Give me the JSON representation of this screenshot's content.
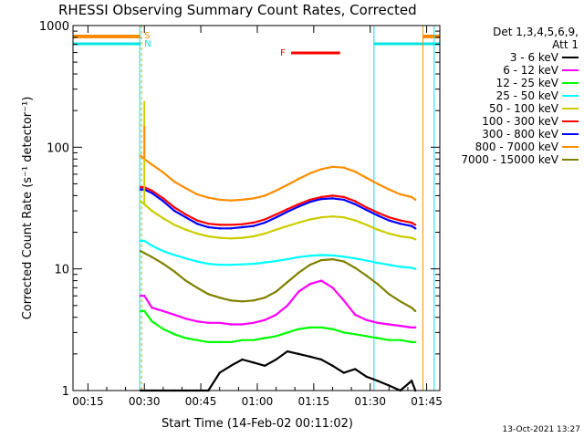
{
  "chart_data": {
    "type": "line",
    "title": "RHESSI Observing Summary Count Rates, Corrected",
    "xlabel": "Start Time (14-Feb-02 00:11:02)",
    "ylabel": "Corrected Count Rate (s⁻¹ detector⁻¹)",
    "yscale": "log",
    "ylim": [
      1,
      1000
    ],
    "xlim": [
      "00:11:02",
      "01:48:30"
    ],
    "x_ticks": [
      "00:15",
      "00:30",
      "00:45",
      "01:00",
      "01:15",
      "01:30",
      "01:45"
    ],
    "y_ticks": [
      "1",
      "10",
      "100",
      "1000"
    ],
    "legend_header": [
      "Det 1,3,4,5,6,9,",
      "Att 1"
    ],
    "legend_position": "right",
    "flags": {
      "S_label": "S",
      "N_label": "N",
      "F_label": "F",
      "F_span": [
        "01:09",
        "01:22"
      ],
      "saa_color": "#ff8c00",
      "night_color": "#00e5e5",
      "flare_color": "#ff0000",
      "orbit_marks": [
        "00:29",
        "01:31",
        "01:44",
        "01:47"
      ]
    },
    "x_times": [
      "00:29",
      "00:30",
      "00:32",
      "00:35",
      "00:38",
      "00:41",
      "00:44",
      "00:47",
      "00:50",
      "00:53",
      "00:56",
      "00:59",
      "01:02",
      "01:05",
      "01:08",
      "01:11",
      "01:14",
      "01:17",
      "01:20",
      "01:23",
      "01:26",
      "01:29",
      "01:32",
      "01:35",
      "01:38",
      "01:41",
      "01:42"
    ],
    "series": [
      {
        "name": "3 - 6 keV",
        "color": "#000000",
        "values": [
          1.0,
          1.0,
          1.0,
          1.0,
          1.0,
          1.0,
          1.0,
          1.0,
          1.4,
          1.6,
          1.8,
          1.7,
          1.6,
          1.8,
          2.1,
          2.0,
          1.9,
          1.8,
          1.6,
          1.4,
          1.5,
          1.3,
          1.2,
          1.1,
          1.0,
          1.2,
          1.0
        ]
      },
      {
        "name": "6 - 12 keV",
        "color": "#ff00ff",
        "values": [
          6.0,
          6.0,
          4.8,
          4.5,
          4.2,
          3.9,
          3.7,
          3.6,
          3.6,
          3.5,
          3.5,
          3.6,
          3.8,
          4.2,
          5.0,
          6.5,
          7.5,
          8.0,
          7.0,
          5.5,
          4.2,
          3.8,
          3.6,
          3.5,
          3.4,
          3.3,
          3.3
        ]
      },
      {
        "name": "12 - 25 keV",
        "color": "#00ff00",
        "values": [
          4.5,
          4.5,
          3.7,
          3.2,
          2.9,
          2.7,
          2.6,
          2.5,
          2.5,
          2.5,
          2.6,
          2.6,
          2.7,
          2.8,
          3.0,
          3.2,
          3.3,
          3.3,
          3.2,
          3.0,
          2.9,
          2.8,
          2.7,
          2.6,
          2.6,
          2.5,
          2.5
        ]
      },
      {
        "name": "25 - 50 keV",
        "color": "#00ffff",
        "values": [
          17.0,
          17.0,
          15.5,
          14.0,
          13.0,
          12.2,
          11.5,
          11.0,
          10.8,
          10.8,
          10.9,
          11.0,
          11.3,
          11.6,
          12.0,
          12.5,
          12.8,
          13.0,
          12.9,
          12.6,
          12.2,
          11.7,
          11.2,
          10.8,
          10.4,
          10.2,
          10.0
        ]
      },
      {
        "name": "50 - 100 keV",
        "color": "#cccc00",
        "values": [
          36.0,
          34.0,
          30.0,
          26.0,
          23.0,
          21.0,
          19.5,
          18.5,
          18.0,
          17.8,
          18.0,
          18.5,
          19.5,
          21.0,
          22.5,
          24.0,
          25.5,
          26.5,
          27.0,
          26.5,
          25.0,
          23.0,
          21.0,
          19.5,
          18.5,
          18.0,
          17.5
        ]
      },
      {
        "name": "100 - 300 keV",
        "color": "#ff0000",
        "values": [
          47.0,
          47.0,
          44.0,
          38.0,
          32.0,
          28.0,
          25.0,
          23.5,
          23.0,
          23.0,
          23.3,
          24.0,
          25.5,
          28.0,
          31.0,
          34.0,
          37.0,
          39.0,
          40.0,
          39.0,
          36.0,
          32.0,
          29.0,
          26.5,
          25.0,
          24.0,
          23.0
        ]
      },
      {
        "name": "300 - 800 keV",
        "color": "#0000ff",
        "values": [
          45.0,
          45.0,
          42.0,
          36.0,
          30.0,
          26.5,
          23.5,
          22.0,
          21.5,
          21.5,
          22.0,
          22.5,
          24.0,
          26.5,
          29.5,
          32.5,
          35.5,
          37.5,
          38.0,
          37.0,
          34.0,
          30.5,
          27.5,
          25.0,
          23.5,
          22.5,
          21.5
        ]
      },
      {
        "name": "800 - 7000 keV",
        "color": "#ff8c00",
        "values": [
          85.0,
          80.0,
          72.0,
          62.0,
          52.0,
          46.0,
          41.0,
          38.5,
          37.0,
          36.5,
          37.0,
          38.0,
          40.0,
          44.0,
          49.0,
          55.0,
          61.0,
          66.0,
          69.0,
          68.0,
          63.0,
          56.0,
          50.0,
          45.0,
          41.0,
          39.0,
          37.0
        ]
      },
      {
        "name": "7000 - 15000 keV",
        "color": "#808000",
        "values": [
          14.0,
          13.5,
          12.5,
          11.0,
          9.5,
          8.0,
          7.0,
          6.2,
          5.8,
          5.5,
          5.4,
          5.5,
          5.8,
          6.5,
          7.8,
          9.3,
          10.8,
          11.8,
          12.0,
          11.5,
          10.2,
          8.8,
          7.5,
          6.2,
          5.4,
          4.8,
          4.5
        ]
      }
    ],
    "spikes": [
      {
        "series": "50 - 100 keV",
        "x": "00:30",
        "value": 240
      },
      {
        "series": "800 - 7000 keV",
        "x": "00:30",
        "value": 150
      }
    ]
  },
  "footer": {
    "timestamp": "13-Oct-2021 13:27"
  }
}
